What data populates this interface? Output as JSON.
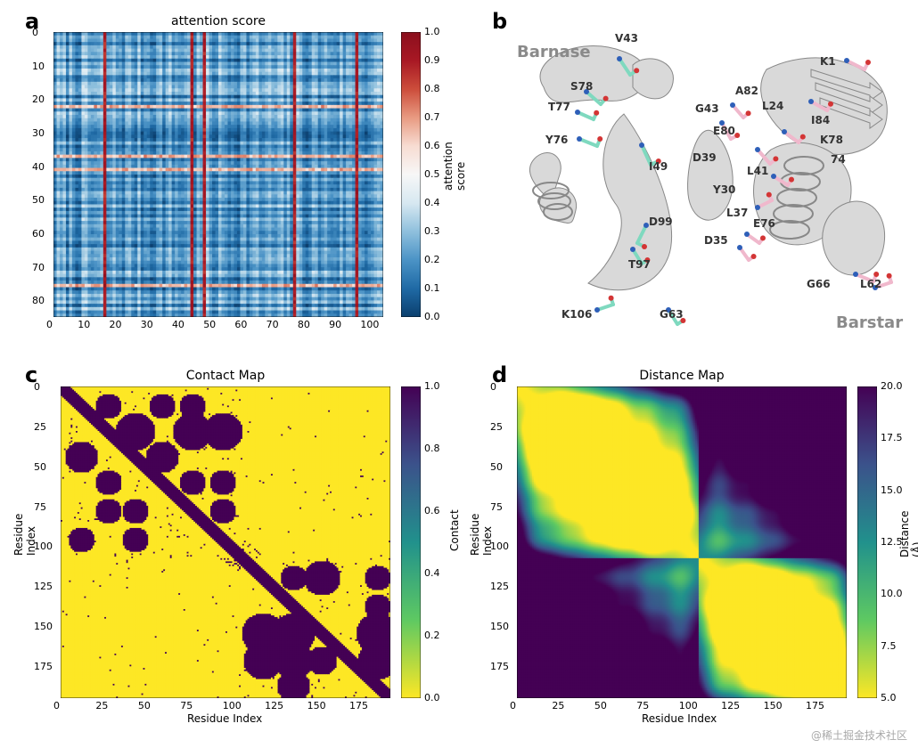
{
  "panels": {
    "a": {
      "label": "a"
    },
    "b": {
      "label": "b"
    },
    "c": {
      "label": "c"
    },
    "d": {
      "label": "d"
    }
  },
  "panel_a": {
    "title": "attention score",
    "title_fontsize": 14,
    "xlim": [
      0,
      105
    ],
    "ylim": [
      0,
      85
    ],
    "xticks": [
      0,
      10,
      20,
      30,
      40,
      50,
      60,
      70,
      80,
      90,
      100
    ],
    "yticks": [
      0,
      10,
      20,
      30,
      40,
      50,
      60,
      70,
      80
    ],
    "cbar": {
      "label": "attention score",
      "ticks": [
        0.0,
        0.1,
        0.2,
        0.3,
        0.4,
        0.5,
        0.6,
        0.7,
        0.8,
        0.9,
        1.0
      ]
    },
    "cmap_stops": [
      "#0b3f6e",
      "#1f6aa5",
      "#4b93c6",
      "#8fc0dd",
      "#d7e8f1",
      "#f7f7f7",
      "#f7dcd2",
      "#e89a81",
      "#cc4d3b",
      "#a81824",
      "#8b0f1d"
    ],
    "hot_columns": [
      16,
      44,
      48,
      77,
      97
    ],
    "hot_rows": [
      22,
      37,
      41,
      76
    ],
    "tick_fontsize": 11
  },
  "panel_b": {
    "domains": {
      "barnase": "Barnase",
      "barstar": "Barstar"
    },
    "barnase_residues": [
      "V43",
      "S78",
      "T77",
      "Y76",
      "I49",
      "D99",
      "T97",
      "K106",
      "G63"
    ],
    "barstar_residues": [
      "K1",
      "A82",
      "L24",
      "I84",
      "K78",
      "G43",
      "E80",
      "D39",
      "L41",
      "Y30",
      "L37",
      "E76",
      "D35",
      "G66",
      "L62",
      "74"
    ],
    "barnase_stick_color": "#7fd9bf",
    "barstar_stick_color": "#f0b8cc",
    "cartoon_color": "#d9d9d9",
    "atom_n_color": "#2e5fb8",
    "atom_o_color": "#d33535"
  },
  "panel_c": {
    "title": "Contact Map",
    "xlabel": "Residue Index",
    "ylabel": "Residue Index",
    "xticks": [
      0,
      25,
      50,
      75,
      100,
      125,
      150,
      175
    ],
    "yticks": [
      0,
      25,
      50,
      75,
      100,
      125,
      150,
      175
    ],
    "xlim": [
      0,
      195
    ],
    "ylim": [
      0,
      195
    ],
    "cbar": {
      "label": "Contact",
      "ticks": [
        0.0,
        0.2,
        0.4,
        0.6,
        0.8,
        1.0
      ]
    },
    "cmap_stops": [
      "#fde725",
      "#5ec962",
      "#21918c",
      "#3b528b",
      "#440154"
    ],
    "bg_low_color": "#fde725",
    "contact_high_color": "#440154",
    "interface_split": 108,
    "tick_fontsize": 11
  },
  "panel_d": {
    "title": "Distance Map",
    "xlabel": "Residue Index",
    "ylabel": "Residue Index",
    "xticks": [
      0,
      25,
      50,
      75,
      100,
      125,
      150,
      175
    ],
    "yticks": [
      0,
      25,
      50,
      75,
      100,
      125,
      150,
      175
    ],
    "xlim": [
      0,
      195
    ],
    "ylim": [
      0,
      195
    ],
    "cbar": {
      "label": "Distance (Å)",
      "ticks": [
        5.0,
        7.5,
        10.0,
        12.5,
        15.0,
        17.5,
        20.0
      ]
    },
    "cmap_stops": [
      "#fde725",
      "#5ec962",
      "#21918c",
      "#3b528b",
      "#440154"
    ],
    "interface_split": 108,
    "tick_fontsize": 11
  },
  "watermark": "@稀土掘金技术社区"
}
